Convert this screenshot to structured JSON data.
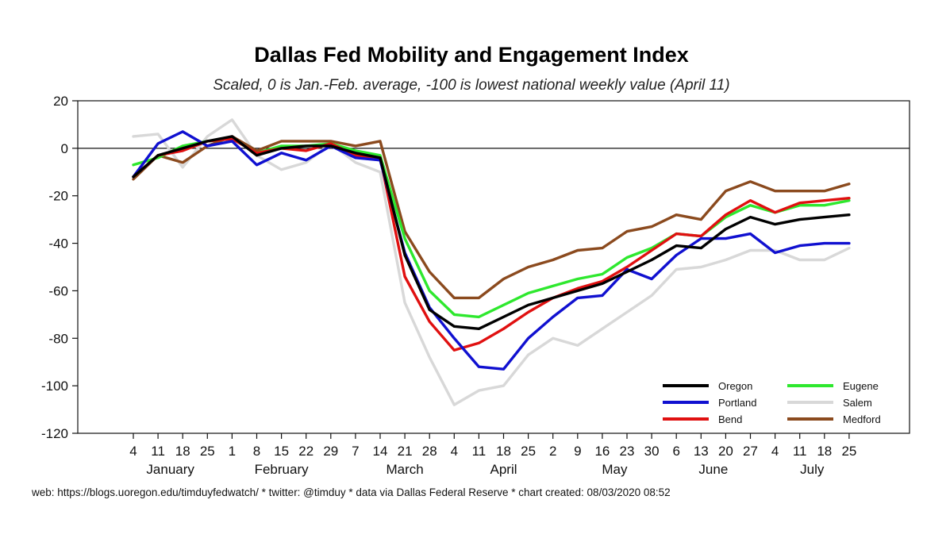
{
  "chart_data": {
    "type": "line",
    "title": "Dallas Fed Mobility and Engagement Index",
    "subtitle": "Scaled, 0 is Jan.-Feb. average, -100 is lowest national weekly value (April 11)",
    "x_ticks": [
      "4",
      "11",
      "18",
      "25",
      "1",
      "8",
      "15",
      "22",
      "29",
      "7",
      "14",
      "21",
      "28",
      "4",
      "11",
      "18",
      "25",
      "2",
      "9",
      "16",
      "23",
      "30",
      "6",
      "13",
      "20",
      "27",
      "4",
      "11",
      "18",
      "25"
    ],
    "months": [
      {
        "label": "January",
        "index": 1.5
      },
      {
        "label": "February",
        "index": 6
      },
      {
        "label": "March",
        "index": 11
      },
      {
        "label": "April",
        "index": 15
      },
      {
        "label": "May",
        "index": 19.5
      },
      {
        "label": "June",
        "index": 23.5
      },
      {
        "label": "July",
        "index": 27.5
      }
    ],
    "ylim": [
      -120,
      20
    ],
    "yticks": [
      20,
      0,
      -20,
      -40,
      -60,
      -80,
      -100,
      -120
    ],
    "zero_line": true,
    "grid": false,
    "legend_position": "bottom-right",
    "series": [
      {
        "name": "Oregon",
        "color": "#000000",
        "values": [
          -12,
          -3,
          0,
          3,
          5,
          -3,
          0,
          1,
          1,
          -2,
          -4,
          -45,
          -68,
          -75,
          -76,
          -71,
          -66,
          -63,
          -60,
          -57,
          -52,
          -47,
          -41,
          -42,
          -34,
          -29,
          -32,
          -30,
          -29,
          -28
        ]
      },
      {
        "name": "Portland",
        "color": "#1010d0",
        "values": [
          -12,
          2,
          7,
          1,
          3,
          -7,
          -2,
          -5,
          1,
          -4,
          -5,
          -44,
          -67,
          -80,
          -92,
          -93,
          -80,
          -71,
          -63,
          -62,
          -51,
          -55,
          -45,
          -38,
          -38,
          -36,
          -44,
          -41,
          -40,
          -40
        ]
      },
      {
        "name": "Bend",
        "color": "#e01010",
        "values": [
          -12,
          -3,
          -1,
          3,
          4,
          -2,
          0,
          -1,
          2,
          -3,
          -4,
          -54,
          -73,
          -85,
          -82,
          -76,
          -69,
          -63,
          -59,
          -56,
          -50,
          -43,
          -36,
          -37,
          -28,
          -22,
          -27,
          -23,
          -22,
          -21
        ]
      },
      {
        "name": "Eugene",
        "color": "#2ee82e",
        "values": [
          -7,
          -4,
          1,
          3,
          4,
          -2,
          1,
          1,
          2,
          -1,
          -3,
          -38,
          -60,
          -70,
          -71,
          -66,
          -61,
          -58,
          -55,
          -53,
          -46,
          -42,
          -36,
          -37,
          -29,
          -24,
          -27,
          -24,
          -24,
          -22
        ]
      },
      {
        "name": "Salem",
        "color": "#d8d8d8",
        "values": [
          5,
          6,
          -8,
          5,
          12,
          -3,
          -9,
          -6,
          2,
          -6,
          -10,
          -65,
          -88,
          -108,
          -102,
          -100,
          -87,
          -80,
          -83,
          -76,
          -69,
          -62,
          -51,
          -50,
          -47,
          -43,
          -43,
          -47,
          -47,
          -42
        ]
      },
      {
        "name": "Medford",
        "color": "#8b4a1e",
        "values": [
          -13,
          -3,
          -6,
          1,
          5,
          -1,
          3,
          3,
          3,
          1,
          3,
          -35,
          -52,
          -63,
          -63,
          -55,
          -50,
          -47,
          -43,
          -42,
          -35,
          -33,
          -28,
          -30,
          -18,
          -14,
          -18,
          -18,
          -18,
          -15
        ]
      }
    ],
    "legend_order": [
      "Oregon",
      "Eugene",
      "Portland",
      "Salem",
      "Bend",
      "Medford"
    ]
  },
  "footer": "web: https://blogs.uoregon.edu/timduyfedwatch/ * twitter: @timduy * data via Dallas Federal Reserve * chart created: 08/03/2020 08:52"
}
